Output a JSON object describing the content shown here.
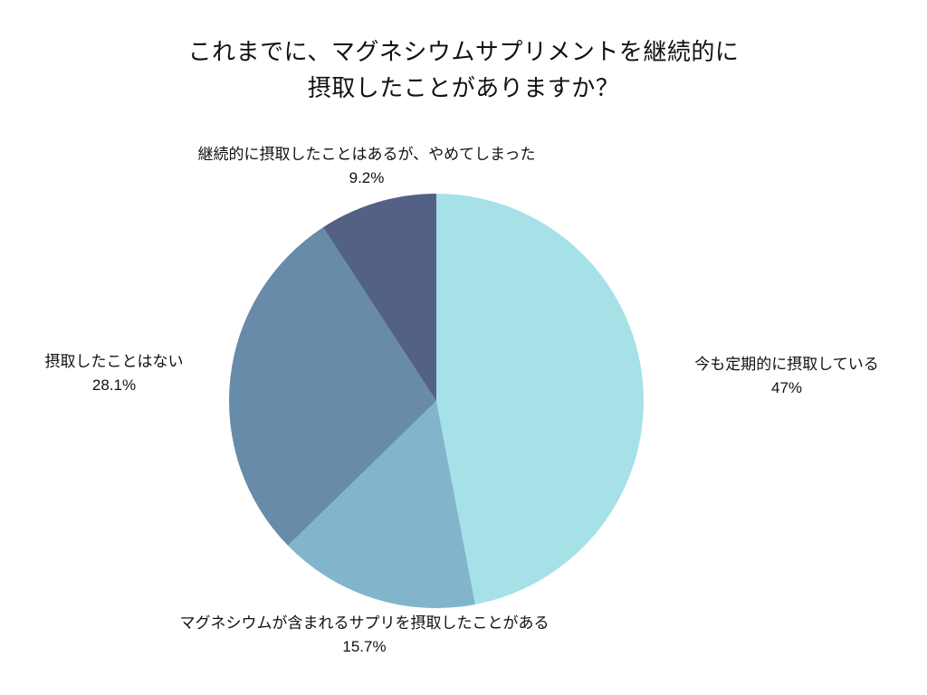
{
  "chart_data": {
    "type": "pie",
    "title_lines": [
      "これまでに、マグネシウムサプリメントを継続的に",
      "摂取したことがありますか？"
    ],
    "start_angle_deg": 0,
    "direction": "clockwise",
    "slices": [
      {
        "label": "今も定期的に摂取している",
        "value": 47,
        "value_label": "47%",
        "color": "#a6e1e8"
      },
      {
        "label": "マグネシウムが含まれるサプリを摂取したことがある",
        "value": 15.7,
        "value_label": "15.7%",
        "color": "#82b5cb"
      },
      {
        "label": "摂取したことはない",
        "value": 28.1,
        "value_label": "28.1%",
        "color": "#678ba8"
      },
      {
        "label": "継続的に摂取したことはあるが、やめてしまった",
        "value": 9.2,
        "value_label": "9.2%",
        "color": "#536185"
      }
    ]
  }
}
